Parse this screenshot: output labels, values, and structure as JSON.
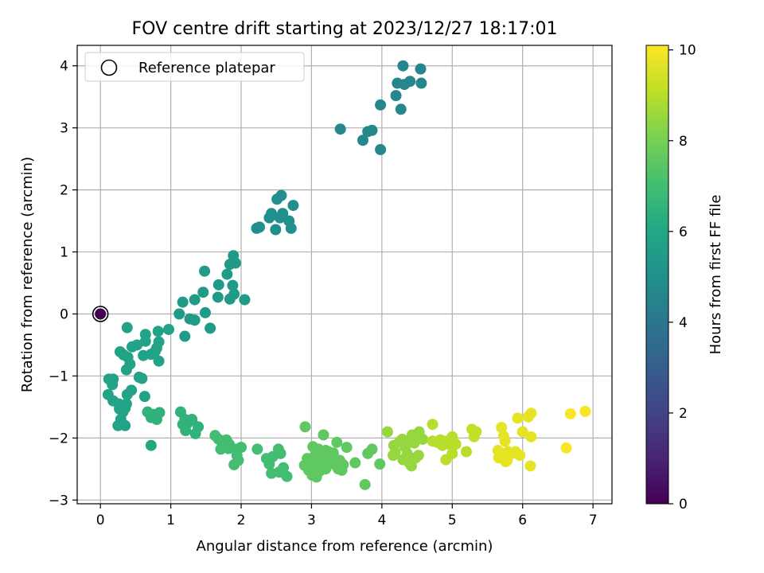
{
  "chart_data": {
    "type": "scatter",
    "title": "FOV centre drift starting at 2023/12/27 18:17:01",
    "xlabel": "Angular distance from reference (arcmin)",
    "ylabel": "Rotation from reference (arcmin)",
    "xlim": [
      -0.33,
      7.27
    ],
    "ylim": [
      -3.06,
      4.33
    ],
    "xticks": [
      0,
      1,
      2,
      3,
      4,
      5,
      6,
      7
    ],
    "yticks": [
      -3,
      -2,
      -1,
      0,
      1,
      2,
      3,
      4
    ],
    "grid": true,
    "legend": {
      "placement": "upper-left",
      "entries": [
        "Reference platepar"
      ]
    },
    "colorbar": {
      "label": "Hours from first FF file",
      "range": [
        0,
        10.1
      ],
      "ticks": [
        0,
        2,
        4,
        6,
        8,
        10
      ],
      "colormap": "viridis"
    },
    "reference_point": {
      "x": 0,
      "y": 0,
      "c": 0
    },
    "points": [
      [
        4.3,
        4.0,
        4.6
      ],
      [
        4.55,
        3.95,
        4.6
      ],
      [
        4.22,
        3.72,
        4.6
      ],
      [
        4.32,
        3.7,
        4.6
      ],
      [
        4.4,
        3.75,
        4.6
      ],
      [
        4.56,
        3.72,
        4.6
      ],
      [
        4.2,
        3.52,
        4.6
      ],
      [
        3.98,
        3.37,
        4.6
      ],
      [
        4.27,
        3.3,
        4.6
      ],
      [
        3.41,
        2.98,
        4.7
      ],
      [
        3.8,
        2.94,
        4.7
      ],
      [
        3.86,
        2.96,
        4.7
      ],
      [
        3.73,
        2.8,
        4.7
      ],
      [
        3.98,
        2.65,
        4.7
      ],
      [
        2.57,
        1.91,
        5.0
      ],
      [
        2.51,
        1.85,
        5.0
      ],
      [
        2.74,
        1.75,
        5.0
      ],
      [
        2.43,
        1.62,
        5.0
      ],
      [
        2.59,
        1.62,
        5.0
      ],
      [
        2.4,
        1.55,
        5.0
      ],
      [
        2.55,
        1.55,
        5.0
      ],
      [
        2.68,
        1.5,
        5.0
      ],
      [
        2.26,
        1.4,
        5.0
      ],
      [
        2.22,
        1.38,
        5.0
      ],
      [
        2.49,
        1.36,
        5.0
      ],
      [
        2.71,
        1.38,
        5.0
      ],
      [
        1.89,
        0.94,
        5.5
      ],
      [
        1.92,
        0.82,
        5.5
      ],
      [
        1.84,
        0.8,
        5.5
      ],
      [
        1.8,
        0.64,
        5.5
      ],
      [
        1.48,
        0.69,
        5.5
      ],
      [
        1.68,
        0.47,
        5.5
      ],
      [
        1.88,
        0.46,
        5.5
      ],
      [
        1.46,
        0.35,
        5.5
      ],
      [
        1.34,
        0.23,
        5.5
      ],
      [
        1.67,
        0.27,
        5.5
      ],
      [
        1.9,
        0.32,
        5.5
      ],
      [
        1.84,
        0.24,
        5.5
      ],
      [
        2.05,
        0.23,
        5.5
      ],
      [
        1.17,
        0.19,
        5.5
      ],
      [
        1.12,
        0.0,
        5.5
      ],
      [
        1.49,
        0.02,
        5.5
      ],
      [
        1.27,
        -0.08,
        5.5
      ],
      [
        1.34,
        -0.1,
        5.5
      ],
      [
        1.56,
        -0.23,
        5.5
      ],
      [
        1.2,
        -0.36,
        5.5
      ],
      [
        0.97,
        -0.25,
        5.8
      ],
      [
        0.82,
        -0.28,
        5.8
      ],
      [
        0.64,
        -0.33,
        5.8
      ],
      [
        0.38,
        -0.22,
        5.8
      ],
      [
        0.83,
        -0.45,
        5.8
      ],
      [
        0.64,
        -0.44,
        5.8
      ],
      [
        0.45,
        -0.53,
        5.8
      ],
      [
        0.52,
        -0.5,
        5.8
      ],
      [
        0.8,
        -0.55,
        5.8
      ],
      [
        0.78,
        -0.6,
        5.8
      ],
      [
        0.28,
        -0.61,
        5.8
      ],
      [
        0.33,
        -0.66,
        5.8
      ],
      [
        0.39,
        -0.7,
        5.8
      ],
      [
        0.72,
        -0.65,
        5.8
      ],
      [
        0.61,
        -0.67,
        5.8
      ],
      [
        0.83,
        -0.76,
        5.8
      ],
      [
        0.42,
        -0.81,
        5.8
      ],
      [
        0.37,
        -0.9,
        5.8
      ],
      [
        0.55,
        -1.02,
        5.8
      ],
      [
        0.59,
        -1.04,
        5.8
      ],
      [
        0.12,
        -1.05,
        5.8
      ],
      [
        0.18,
        -1.05,
        5.8
      ],
      [
        0.17,
        -1.14,
        5.8
      ],
      [
        0.44,
        -1.23,
        5.8
      ],
      [
        0.38,
        -1.3,
        5.8
      ],
      [
        0.11,
        -1.3,
        5.8
      ],
      [
        0.63,
        -1.33,
        5.8
      ],
      [
        0.18,
        -1.4,
        5.8
      ],
      [
        0.26,
        -1.45,
        5.8
      ],
      [
        0.37,
        -1.45,
        5.8
      ],
      [
        0.3,
        -1.48,
        5.8
      ],
      [
        0.27,
        -1.53,
        5.8
      ],
      [
        0.35,
        -1.52,
        5.8
      ],
      [
        0.32,
        -1.58,
        5.8
      ],
      [
        0.29,
        -1.7,
        5.8
      ],
      [
        0.35,
        -1.8,
        5.8
      ],
      [
        0.25,
        -1.8,
        5.8
      ],
      [
        0.72,
        -2.12,
        6.0
      ],
      [
        0.67,
        -1.58,
        6.5
      ],
      [
        0.75,
        -1.62,
        6.5
      ],
      [
        0.84,
        -1.59,
        6.5
      ],
      [
        1.14,
        -1.58,
        6.5
      ],
      [
        0.72,
        -1.67,
        6.5
      ],
      [
        0.8,
        -1.7,
        6.5
      ],
      [
        1.2,
        -1.7,
        6.5
      ],
      [
        1.3,
        -1.7,
        6.5
      ],
      [
        1.17,
        -1.78,
        6.5
      ],
      [
        1.24,
        -1.76,
        6.5
      ],
      [
        1.39,
        -1.82,
        6.5
      ],
      [
        1.21,
        -1.88,
        6.5
      ],
      [
        1.35,
        -1.93,
        6.5
      ],
      [
        1.63,
        -1.96,
        7.0
      ],
      [
        1.68,
        -2.02,
        7.0
      ],
      [
        1.79,
        -2.03,
        7.0
      ],
      [
        1.83,
        -2.1,
        7.0
      ],
      [
        1.71,
        -2.18,
        7.0
      ],
      [
        1.82,
        -2.17,
        7.0
      ],
      [
        1.93,
        -2.18,
        7.0
      ],
      [
        2.0,
        -2.15,
        7.0
      ],
      [
        1.94,
        -2.28,
        7.0
      ],
      [
        1.96,
        -2.36,
        7.0
      ],
      [
        1.9,
        -2.43,
        7.0
      ],
      [
        2.23,
        -2.18,
        7.0
      ],
      [
        2.36,
        -2.33,
        7.0
      ],
      [
        2.45,
        -2.3,
        7.0
      ],
      [
        2.53,
        -2.18,
        7.0
      ],
      [
        2.4,
        -2.42,
        7.0
      ],
      [
        2.56,
        -2.25,
        7.0
      ],
      [
        2.6,
        -2.48,
        7.0
      ],
      [
        2.54,
        -2.55,
        7.0
      ],
      [
        2.65,
        -2.62,
        7.0
      ],
      [
        2.43,
        -2.57,
        7.0
      ],
      [
        2.91,
        -1.82,
        7.6
      ],
      [
        3.17,
        -1.95,
        7.6
      ],
      [
        3.36,
        -2.07,
        7.6
      ],
      [
        3.02,
        -2.14,
        7.6
      ],
      [
        3.1,
        -2.18,
        7.6
      ],
      [
        3.2,
        -2.2,
        7.6
      ],
      [
        3.24,
        -2.22,
        7.6
      ],
      [
        3.31,
        -2.24,
        7.6
      ],
      [
        3.05,
        -2.28,
        7.6
      ],
      [
        3.15,
        -2.3,
        7.6
      ],
      [
        2.94,
        -2.33,
        7.6
      ],
      [
        3.0,
        -2.37,
        7.6
      ],
      [
        3.08,
        -2.38,
        7.6
      ],
      [
        3.19,
        -2.4,
        7.6
      ],
      [
        3.27,
        -2.35,
        7.6
      ],
      [
        3.35,
        -2.38,
        7.6
      ],
      [
        3.4,
        -2.36,
        7.6
      ],
      [
        2.9,
        -2.44,
        7.6
      ],
      [
        3.0,
        -2.45,
        7.6
      ],
      [
        3.09,
        -2.48,
        7.6
      ],
      [
        3.16,
        -2.43,
        7.6
      ],
      [
        3.22,
        -2.45,
        7.6
      ],
      [
        3.32,
        -2.42,
        7.6
      ],
      [
        3.45,
        -2.43,
        7.6
      ],
      [
        2.96,
        -2.52,
        7.6
      ],
      [
        3.05,
        -2.56,
        7.6
      ],
      [
        3.12,
        -2.53,
        7.6
      ],
      [
        3.2,
        -2.5,
        7.6
      ],
      [
        3.38,
        -2.5,
        7.6
      ],
      [
        3.43,
        -2.52,
        7.6
      ],
      [
        3.01,
        -2.6,
        7.6
      ],
      [
        3.07,
        -2.63,
        7.6
      ],
      [
        3.5,
        -2.15,
        7.6
      ],
      [
        3.62,
        -2.4,
        7.6
      ],
      [
        3.76,
        -2.75,
        7.6
      ],
      [
        3.8,
        -2.25,
        7.6
      ],
      [
        3.86,
        -2.18,
        7.6
      ],
      [
        3.97,
        -2.42,
        7.6
      ],
      [
        4.08,
        -1.9,
        8.5
      ],
      [
        4.17,
        -2.12,
        8.5
      ],
      [
        4.19,
        -2.23,
        8.5
      ],
      [
        4.16,
        -2.28,
        8.5
      ],
      [
        4.25,
        -2.06,
        8.5
      ],
      [
        4.29,
        -2.02,
        8.5
      ],
      [
        4.33,
        -2.15,
        8.5
      ],
      [
        4.36,
        -2.25,
        8.5
      ],
      [
        4.41,
        -2.02,
        8.5
      ],
      [
        4.43,
        -1.95,
        8.5
      ],
      [
        4.46,
        -2.08,
        8.5
      ],
      [
        4.48,
        -2.32,
        8.5
      ],
      [
        4.39,
        -2.4,
        8.5
      ],
      [
        4.3,
        -2.35,
        8.5
      ],
      [
        4.53,
        -1.9,
        8.5
      ],
      [
        4.58,
        -2.02,
        8.5
      ],
      [
        4.52,
        -2.28,
        8.5
      ],
      [
        4.42,
        -2.45,
        8.5
      ],
      [
        4.72,
        -1.78,
        9.0
      ],
      [
        4.72,
        -2.05,
        9.0
      ],
      [
        4.79,
        -2.07,
        9.0
      ],
      [
        4.83,
        -2.03,
        9.0
      ],
      [
        4.86,
        -2.12,
        9.0
      ],
      [
        4.92,
        -2.05,
        9.0
      ],
      [
        4.96,
        -2.1,
        9.0
      ],
      [
        5.0,
        -1.98,
        9.0
      ],
      [
        5.02,
        -2.07,
        9.0
      ],
      [
        5.05,
        -2.1,
        9.0
      ],
      [
        4.91,
        -2.35,
        9.0
      ],
      [
        5.0,
        -2.25,
        9.0
      ],
      [
        5.2,
        -2.22,
        9.0
      ],
      [
        5.28,
        -1.86,
        9.2
      ],
      [
        5.34,
        -1.9,
        9.2
      ],
      [
        5.31,
        -1.98,
        9.2
      ],
      [
        5.65,
        -2.2,
        9.7
      ],
      [
        5.7,
        -1.83,
        9.7
      ],
      [
        5.73,
        -1.97,
        9.7
      ],
      [
        5.75,
        -2.05,
        9.7
      ],
      [
        5.72,
        -2.3,
        9.7
      ],
      [
        5.66,
        -2.32,
        9.7
      ],
      [
        5.76,
        -2.38,
        9.7
      ],
      [
        5.79,
        -2.22,
        9.7
      ],
      [
        5.85,
        -2.25,
        9.7
      ],
      [
        5.9,
        -2.22,
        9.7
      ],
      [
        5.93,
        -1.68,
        9.7
      ],
      [
        5.96,
        -2.28,
        9.7
      ],
      [
        6.0,
        -1.9,
        9.7
      ],
      [
        6.08,
        -1.66,
        9.7
      ],
      [
        6.12,
        -1.6,
        9.7
      ],
      [
        6.12,
        -1.98,
        9.7
      ],
      [
        6.11,
        -2.45,
        9.7
      ],
      [
        5.78,
        -2.36,
        9.7
      ],
      [
        6.62,
        -2.16,
        10.0
      ],
      [
        6.68,
        -1.61,
        10.0
      ],
      [
        6.89,
        -1.57,
        10.0
      ]
    ]
  }
}
